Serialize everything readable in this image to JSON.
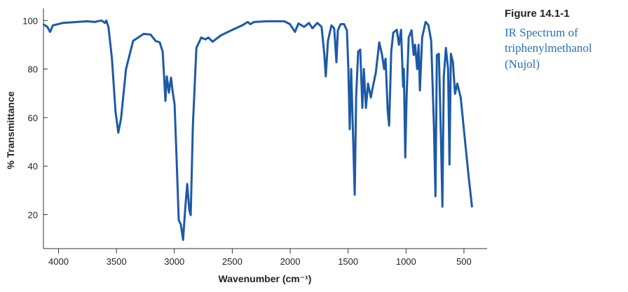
{
  "chart_data": {
    "type": "line",
    "figure_label": "Figure 14.1-1",
    "caption": [
      "IR Spectrum of",
      "triphenylmethanol",
      "(Nujol)"
    ],
    "xlabel": "Wavenumber (cm⁻¹)",
    "ylabel": "% Transmittance",
    "color": "#1d5aa6",
    "xlim": [
      4130,
      300
    ],
    "xticks": [
      4000,
      3500,
      3000,
      2500,
      2000,
      1500,
      1000,
      500
    ],
    "ylim": [
      6,
      105
    ],
    "yticks": [
      20,
      40,
      60,
      80,
      100
    ],
    "x": [
      4133,
      4097,
      4073,
      4049,
      3964,
      3842,
      3751,
      3690,
      3630,
      3599,
      3587,
      3569,
      3539,
      3508,
      3484,
      3460,
      3417,
      3356,
      3265,
      3205,
      3162,
      3126,
      3101,
      3089,
      3077,
      3065,
      3047,
      3029,
      3016,
      2998,
      2980,
      2962,
      2944,
      2925,
      2907,
      2889,
      2871,
      2859,
      2840,
      2810,
      2768,
      2731,
      2707,
      2670,
      2598,
      2507,
      2415,
      2367,
      2343,
      2312,
      2203,
      2051,
      2002,
      1959,
      1929,
      1880,
      1838,
      1808,
      1766,
      1729,
      1705,
      1693,
      1674,
      1644,
      1620,
      1601,
      1589,
      1565,
      1535,
      1510,
      1498,
      1486,
      1474,
      1456,
      1443,
      1431,
      1413,
      1395,
      1377,
      1364,
      1346,
      1328,
      1304,
      1286,
      1261,
      1231,
      1207,
      1189,
      1177,
      1158,
      1146,
      1128,
      1110,
      1080,
      1061,
      1043,
      1025,
      1019,
      1007,
      995,
      977,
      952,
      934,
      922,
      904,
      892,
      880,
      861,
      831,
      807,
      783,
      759,
      746,
      734,
      716,
      698,
      686,
      674,
      656,
      637,
      625,
      613,
      595,
      577,
      558,
      528,
      492,
      461,
      430
    ],
    "values": [
      98.5,
      97.4,
      95.3,
      98,
      99,
      99.4,
      99.7,
      99.4,
      100,
      99,
      100,
      97.4,
      84.3,
      62.5,
      53.8,
      59.6,
      80,
      91.6,
      94.5,
      94.2,
      91.6,
      91,
      87.2,
      77,
      66.9,
      77,
      70.3,
      76.5,
      71.2,
      65.4,
      42,
      17.7,
      16,
      9.6,
      21.8,
      32.6,
      21.8,
      19.8,
      56.7,
      88.7,
      93,
      92.2,
      93,
      91.3,
      93.9,
      96,
      98,
      99.4,
      98.5,
      99.4,
      99.7,
      99.7,
      98.5,
      95.3,
      98.8,
      97.4,
      99,
      96.8,
      99,
      97.4,
      85.8,
      77,
      91.6,
      98,
      96.8,
      82.8,
      95.9,
      98.5,
      98.5,
      95.9,
      80,
      55.2,
      80,
      50.9,
      28.2,
      68.3,
      87.2,
      88,
      64,
      80,
      64,
      74,
      68.3,
      72.7,
      78.5,
      91,
      85.8,
      80,
      84.3,
      62.5,
      56.7,
      87.2,
      95,
      96.2,
      90,
      96.2,
      72.7,
      80,
      43.6,
      68.3,
      93,
      96,
      85.8,
      90,
      80,
      90,
      71.2,
      93,
      99.4,
      98.2,
      91.6,
      56.7,
      27.6,
      85.8,
      86.3,
      50.9,
      23.3,
      77,
      88.7,
      80,
      40.7,
      86.3,
      82.8,
      69.8,
      74,
      68.3,
      50.9,
      36.3,
      23
    ]
  }
}
